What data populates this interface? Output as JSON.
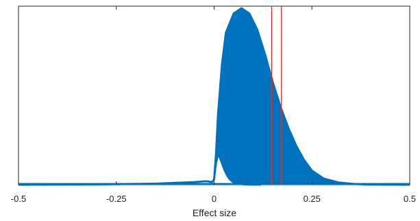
{
  "chart_data": {
    "type": "area",
    "xlabel": "Effect size",
    "ylabel": "",
    "xlim": [
      -0.5,
      0.5
    ],
    "ylim": [
      0,
      1
    ],
    "xticks": [
      -0.5,
      -0.25,
      0,
      0.25,
      0.5
    ],
    "xtick_labels": [
      "-0.5",
      "-0.25",
      "0",
      "0.25",
      "0.5"
    ],
    "grid": false,
    "legend": "none",
    "colors": {
      "fill": "#0072BD",
      "markers": "#E0302F",
      "axis": "#222222"
    },
    "upper_curve": {
      "x": [
        -0.5,
        -0.3,
        -0.15,
        -0.05,
        -0.02,
        -0.005,
        0,
        0.005,
        0.01,
        0.02,
        0.03,
        0.05,
        0.07,
        0.09,
        0.11,
        0.13,
        0.15,
        0.17,
        0.19,
        0.21,
        0.23,
        0.25,
        0.28,
        0.32,
        0.36,
        0.4,
        0.5
      ],
      "y": [
        0,
        0.002,
        0.006,
        0.015,
        0.02,
        0.015,
        0.03,
        0.18,
        0.4,
        0.68,
        0.86,
        0.97,
        1.0,
        0.97,
        0.88,
        0.74,
        0.58,
        0.44,
        0.32,
        0.22,
        0.14,
        0.08,
        0.035,
        0.012,
        0.004,
        0.001,
        0
      ]
    },
    "lower_curve": {
      "x": [
        0,
        0.005,
        0.01,
        0.015,
        0.02,
        0.025,
        0.03,
        0.035,
        0.04,
        0.045,
        0.05,
        0.06,
        0.07,
        0.08,
        0.1,
        0.5
      ],
      "y": [
        0.03,
        0.12,
        0.17,
        0.15,
        0.12,
        0.09,
        0.065,
        0.045,
        0.03,
        0.02,
        0.013,
        0.006,
        0.003,
        0.001,
        0,
        0
      ]
    },
    "reference_lines": [
      0.147,
      0.172
    ]
  }
}
